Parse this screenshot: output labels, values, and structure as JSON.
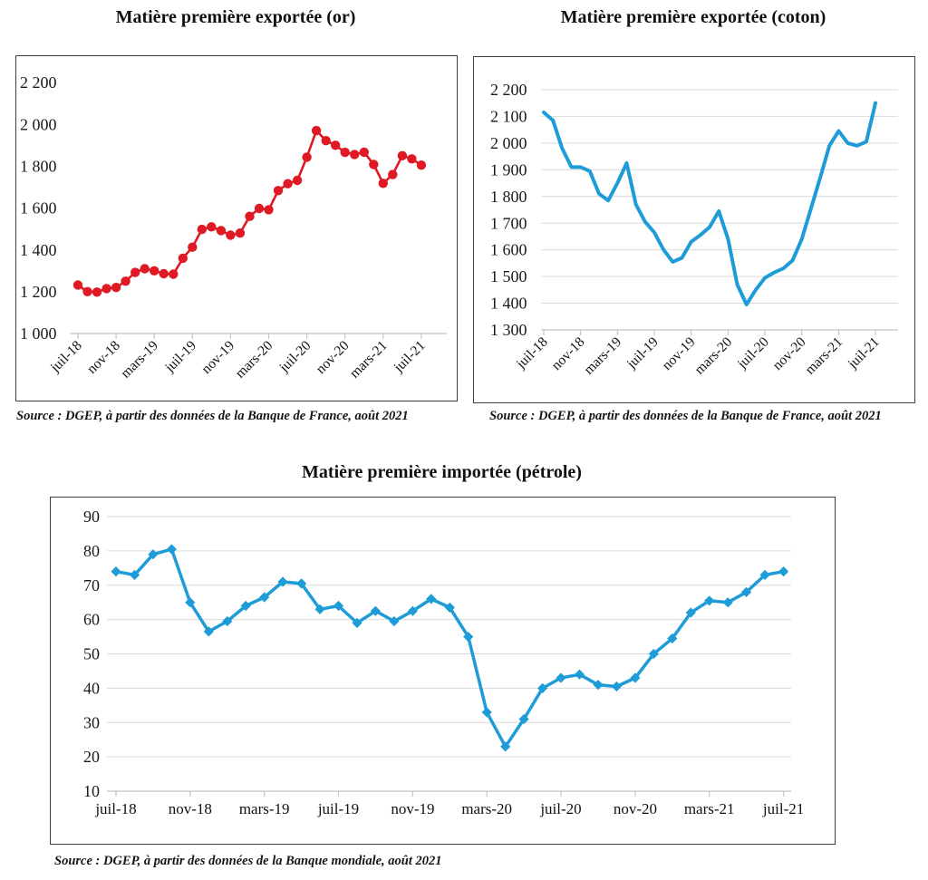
{
  "page": {
    "background": "#ffffff"
  },
  "chart_data": [
    {
      "type": "line",
      "title": "Matière première exportée (or)",
      "source": "Source : DGEP, à partir des données de la Banque de France, août 2021",
      "color": "#e01a24",
      "marker": "circle",
      "grid": false,
      "legend": "none",
      "ylim": [
        1000,
        2200
      ],
      "y_tick_step": 200,
      "y_tick_labels": [
        "2 200",
        "2 000",
        "1 800",
        "1 600",
        "1 400",
        "1 200",
        "1 000"
      ],
      "x_tick_labels": [
        "juil-18",
        "nov-18",
        "mars-19",
        "juil-19",
        "nov-19",
        "mars-20",
        "juil-20",
        "nov-20",
        "mars-21",
        "juil-21"
      ],
      "x": [
        "juil-18",
        "août-18",
        "sept-18",
        "oct-18",
        "nov-18",
        "déc-18",
        "janv-19",
        "févr-19",
        "mars-19",
        "avr-19",
        "mai-19",
        "juin-19",
        "juil-19",
        "août-19",
        "sept-19",
        "oct-19",
        "nov-19",
        "déc-19",
        "janv-20",
        "févr-20",
        "mars-20",
        "avr-20",
        "mai-20",
        "juin-20",
        "juil-20",
        "août-20",
        "sept-20",
        "oct-20",
        "nov-20",
        "déc-20",
        "janv-21",
        "févr-21",
        "mars-21",
        "avr-21",
        "mai-21",
        "juin-21",
        "juil-21"
      ],
      "values": [
        1232,
        1200,
        1198,
        1215,
        1220,
        1250,
        1292,
        1310,
        1300,
        1286,
        1284,
        1360,
        1413,
        1498,
        1510,
        1492,
        1470,
        1480,
        1560,
        1598,
        1592,
        1683,
        1716,
        1732,
        1843,
        1970,
        1922,
        1900,
        1866,
        1856,
        1867,
        1808,
        1718,
        1760,
        1850,
        1835,
        1805
      ]
    },
    {
      "type": "line",
      "title": "Matière première exportée (coton)",
      "source": "Source : DGEP, à partir des données de la Banque de France, août 2021",
      "color": "#1e9cd7",
      "marker": "none",
      "grid": true,
      "legend": "none",
      "ylim": [
        1300,
        2200
      ],
      "y_tick_step": 100,
      "y_tick_labels": [
        "2 200",
        "2 100",
        "2 000",
        "1 900",
        "1 800",
        "1 700",
        "1 600",
        "1 500",
        "1 400",
        "1 300"
      ],
      "x_tick_labels": [
        "juil-18",
        "nov-18",
        "mars-19",
        "juil-19",
        "nov-19",
        "mars-20",
        "juil-20",
        "nov-20",
        "mars-21",
        "juil-21"
      ],
      "x": [
        "juil-18",
        "août-18",
        "sept-18",
        "oct-18",
        "nov-18",
        "déc-18",
        "janv-19",
        "févr-19",
        "mars-19",
        "avr-19",
        "mai-19",
        "juin-19",
        "juil-19",
        "août-19",
        "sept-19",
        "oct-19",
        "nov-19",
        "déc-19",
        "janv-20",
        "févr-20",
        "mars-20",
        "avr-20",
        "mai-20",
        "juin-20",
        "juil-20",
        "août-20",
        "sept-20",
        "oct-20",
        "nov-20",
        "déc-20",
        "janv-21",
        "févr-21",
        "mars-21",
        "avr-21",
        "mai-21",
        "juin-21",
        "juil-21"
      ],
      "values": [
        2115,
        2085,
        1980,
        1910,
        1910,
        1895,
        1810,
        1785,
        1850,
        1925,
        1770,
        1705,
        1665,
        1600,
        1555,
        1570,
        1630,
        1655,
        1685,
        1745,
        1640,
        1470,
        1395,
        1450,
        1495,
        1515,
        1530,
        1560,
        1640,
        1755,
        1870,
        1990,
        2045,
        2000,
        1990,
        2005,
        2150
      ]
    },
    {
      "type": "line",
      "title": "Matière première importée (pétrole)",
      "source": "Source : DGEP, à partir des données de la Banque mondiale, août 2021",
      "color": "#1e9cd7",
      "marker": "diamond",
      "grid": true,
      "legend": "none",
      "ylim": [
        10,
        90
      ],
      "y_tick_step": 10,
      "y_tick_labels": [
        "90",
        "80",
        "70",
        "60",
        "50",
        "40",
        "30",
        "20",
        "10"
      ],
      "x_tick_labels": [
        "juil-18",
        "nov-18",
        "mars-19",
        "juil-19",
        "nov-19",
        "mars-20",
        "juil-20",
        "nov-20",
        "mars-21",
        "juil-21"
      ],
      "x": [
        "juil-18",
        "août-18",
        "sept-18",
        "oct-18",
        "nov-18",
        "déc-18",
        "janv-19",
        "févr-19",
        "mars-19",
        "avr-19",
        "mai-19",
        "juin-19",
        "juil-19",
        "août-19",
        "sept-19",
        "oct-19",
        "nov-19",
        "déc-19",
        "janv-20",
        "févr-20",
        "mars-20",
        "avr-20",
        "mai-20",
        "juin-20",
        "juil-20",
        "août-20",
        "sept-20",
        "oct-20",
        "nov-20",
        "déc-20",
        "janv-21",
        "févr-21",
        "mars-21",
        "avr-21",
        "mai-21",
        "juin-21",
        "juil-21"
      ],
      "values": [
        74,
        73,
        79,
        80.5,
        65,
        56.5,
        59.5,
        64,
        66.5,
        71,
        70.5,
        63,
        64,
        59,
        62.5,
        59.5,
        62.5,
        66,
        63.5,
        55,
        33,
        23,
        31,
        40,
        43,
        44,
        41,
        40.5,
        43,
        50,
        54.5,
        62,
        65.5,
        65,
        68,
        73,
        74
      ]
    }
  ]
}
